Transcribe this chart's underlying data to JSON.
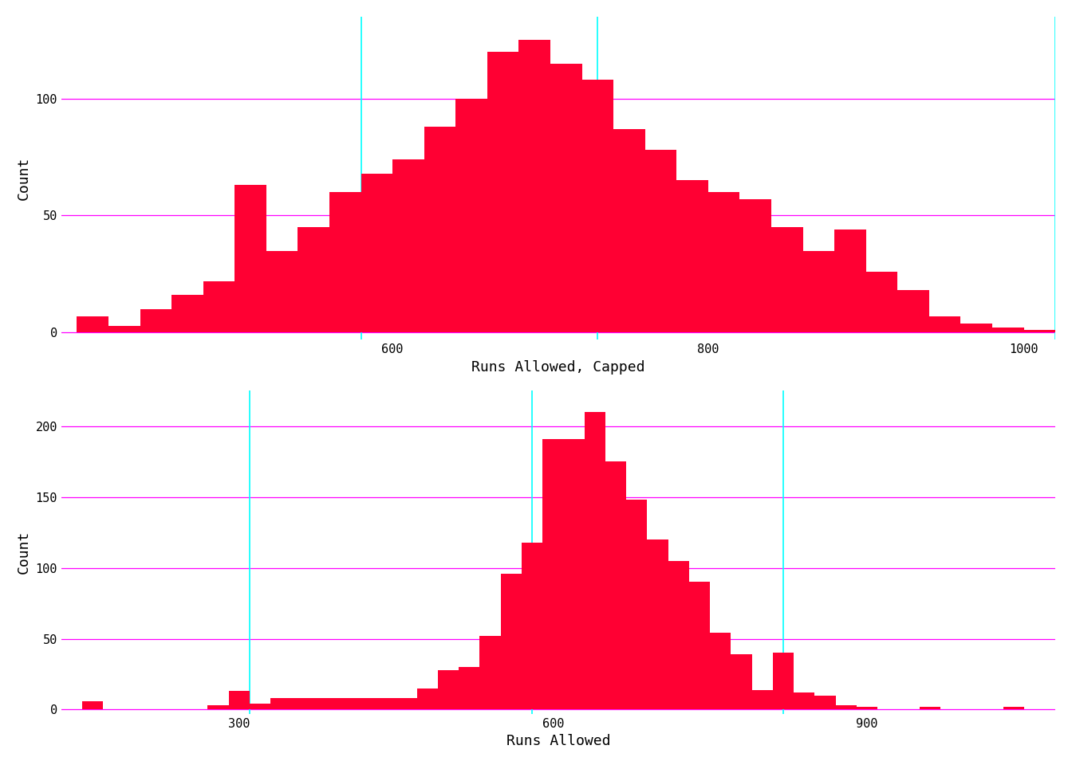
{
  "top": {
    "xlabel": "Runs Allowed, Capped",
    "ylabel": "Count",
    "bar_color": "#FF0033",
    "xlim": [
      390,
      1020
    ],
    "ylim": [
      -3,
      135
    ],
    "yticks": [
      0,
      50,
      100
    ],
    "xticks": [
      600,
      800,
      1000
    ],
    "cyan_vlines": [
      580,
      730,
      1020
    ],
    "magenta_hlines": [
      0,
      50,
      100
    ],
    "bin_width": 20,
    "bin_starts": [
      400,
      420,
      440,
      460,
      480,
      500,
      520,
      540,
      560,
      580,
      600,
      620,
      640,
      660,
      680,
      700,
      720,
      740,
      760,
      780,
      800,
      820,
      840,
      860,
      880,
      900,
      920,
      940,
      960,
      980,
      1000
    ],
    "counts": [
      7,
      3,
      10,
      16,
      22,
      63,
      35,
      45,
      60,
      68,
      74,
      88,
      100,
      120,
      125,
      115,
      108,
      87,
      78,
      65,
      60,
      57,
      45,
      35,
      44,
      26,
      18,
      7,
      4,
      2,
      1
    ]
  },
  "bottom": {
    "xlabel": "Runs Allowed",
    "ylabel": "Count",
    "bar_color": "#FF0033",
    "xlim": [
      130,
      1080
    ],
    "ylim": [
      -3,
      225
    ],
    "yticks": [
      0,
      50,
      100,
      150,
      200
    ],
    "xticks": [
      300,
      600,
      900
    ],
    "cyan_vlines": [
      310,
      580,
      820
    ],
    "magenta_hlines": [
      0,
      50,
      100,
      150,
      200
    ],
    "bin_width": 20,
    "bin_starts": [
      150,
      170,
      190,
      210,
      230,
      250,
      270,
      290,
      310,
      330,
      350,
      370,
      390,
      410,
      430,
      450,
      470,
      490,
      510,
      530,
      550,
      570,
      590,
      610,
      630,
      650,
      670,
      690,
      710,
      730,
      750,
      770,
      790,
      810,
      830,
      850,
      870,
      890,
      910,
      930,
      950,
      970,
      990,
      1010,
      1030,
      1050
    ],
    "counts": [
      6,
      0,
      0,
      0,
      0,
      0,
      3,
      13,
      4,
      8,
      8,
      8,
      8,
      8,
      8,
      8,
      15,
      28,
      30,
      52,
      96,
      118,
      191,
      191,
      210,
      175,
      148,
      120,
      105,
      90,
      54,
      39,
      14,
      40,
      12,
      10,
      3,
      2,
      0,
      0,
      2,
      0,
      0,
      0,
      2,
      0
    ]
  },
  "background_color": "#ffffff",
  "font_color": "#000000",
  "font_family": "monospace"
}
